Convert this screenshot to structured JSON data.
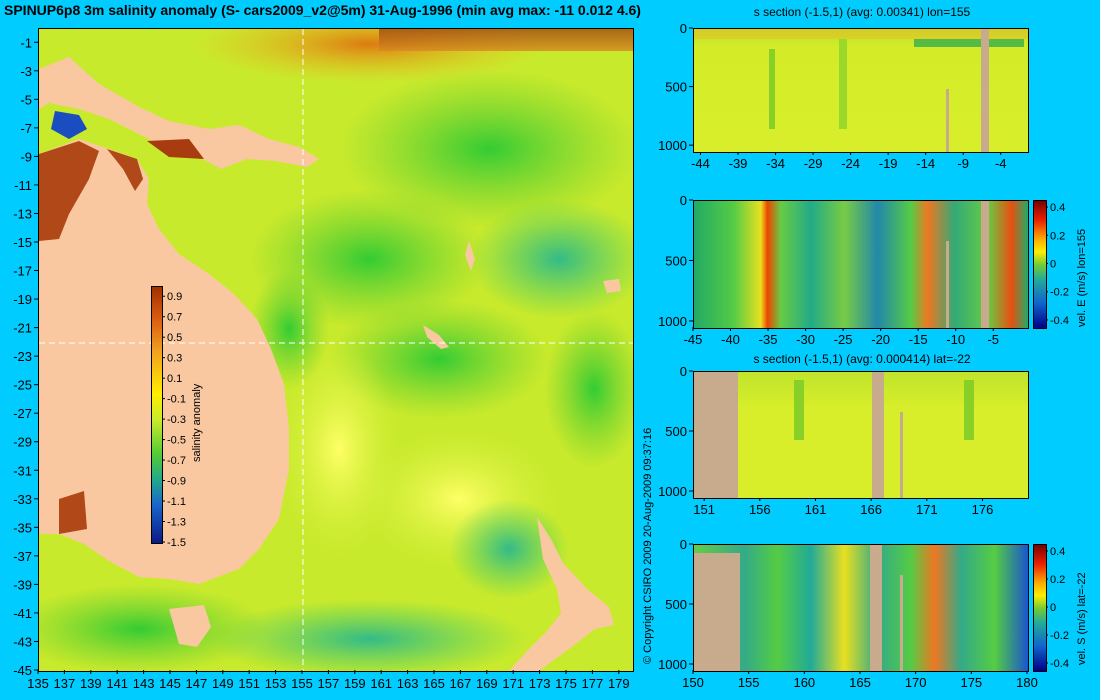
{
  "title": "SPINUP6p8 3m salinity anomaly (S- cars2009_v2@5m) 31-Aug-1996 (min avg max: -11 0.012 4.6)",
  "copyright": "© Copyright CSIRO 2009  20-Aug-2009 09:37:16",
  "colors": {
    "background": "#00ccff",
    "land": "#f9c8a0",
    "section_land": "#c8aa8c"
  },
  "chart_data": [
    {
      "id": "map",
      "type": "heatmap",
      "title": "SPINUP6p8 3m salinity anomaly (S- cars2009_v2@5m) 31-Aug-1996 (min avg max: -11 0.012 4.6)",
      "x_ticks": [
        "135",
        "137",
        "139",
        "141",
        "143",
        "145",
        "147",
        "149",
        "151",
        "153",
        "155",
        "157",
        "159",
        "161",
        "163",
        "165",
        "167",
        "169",
        "171",
        "173",
        "175",
        "177",
        "179"
      ],
      "y_ticks": [
        "-1",
        "-3",
        "-5",
        "-7",
        "-9",
        "-11",
        "-13",
        "-15",
        "-17",
        "-19",
        "-21",
        "-23",
        "-25",
        "-27",
        "-29",
        "-31",
        "-33",
        "-35",
        "-37",
        "-39",
        "-41",
        "-43",
        "-45"
      ],
      "xlim": [
        135,
        180
      ],
      "ylim": [
        -45,
        0
      ],
      "crosshair": {
        "lon": 155,
        "lat": -22
      },
      "colorbar": {
        "label": "salinity anomaly",
        "ticks": [
          "0.9",
          "0.7",
          "0.5",
          "0.3",
          "0.1",
          "-0.1",
          "-0.3",
          "-0.5",
          "-0.7",
          "-0.9",
          "-1.1",
          "-1.3",
          "-1.5"
        ],
        "range": [
          -1.5,
          1
        ]
      }
    },
    {
      "id": "section_s_lon155",
      "type": "heatmap",
      "title": "s section (-1.5,1) (avg: 0.00341) lon=155",
      "x_ticks": [
        "-44",
        "-39",
        "-34",
        "-29",
        "-24",
        "-19",
        "-14",
        "-9",
        "-4"
      ],
      "y_ticks": [
        "0",
        "500",
        "1000"
      ],
      "xlim": [
        -45,
        -0.5
      ],
      "ylim": [
        1050,
        0
      ]
    },
    {
      "id": "section_velE_lon155",
      "type": "heatmap",
      "x_ticks": [
        "-45",
        "-40",
        "-35",
        "-30",
        "-25",
        "-20",
        "-15",
        "-10",
        "-5"
      ],
      "y_ticks": [
        "0",
        "500",
        "1000"
      ],
      "xlim": [
        -45,
        -0.5
      ],
      "ylim": [
        1050,
        0
      ],
      "colorbar": {
        "label": "vel. E (m/s) lon=155",
        "ticks": [
          "0.4",
          "0.2",
          "0",
          "-0.2",
          "-0.4"
        ],
        "range": [
          -0.45,
          0.45
        ]
      }
    },
    {
      "id": "section_s_lat22",
      "type": "heatmap",
      "title": "s section (-1.5,1) (avg: 0.000414) lat=-22",
      "x_ticks": [
        "151",
        "156",
        "161",
        "166",
        "171",
        "176"
      ],
      "y_ticks": [
        "0",
        "500",
        "1000"
      ],
      "xlim": [
        150,
        180
      ],
      "ylim": [
        1050,
        0
      ]
    },
    {
      "id": "section_velS_lat22",
      "type": "heatmap",
      "x_ticks": [
        "150",
        "155",
        "160",
        "165",
        "170",
        "175",
        "180"
      ],
      "y_ticks": [
        "0",
        "500",
        "1000"
      ],
      "xlim": [
        150,
        180
      ],
      "ylim": [
        1050,
        0
      ],
      "colorbar": {
        "label": "vel. S (m/s) lat=-22",
        "ticks": [
          "0.4",
          "0.2",
          "0",
          "-0.2",
          "-0.4"
        ],
        "range": [
          -0.45,
          0.45
        ]
      }
    }
  ]
}
